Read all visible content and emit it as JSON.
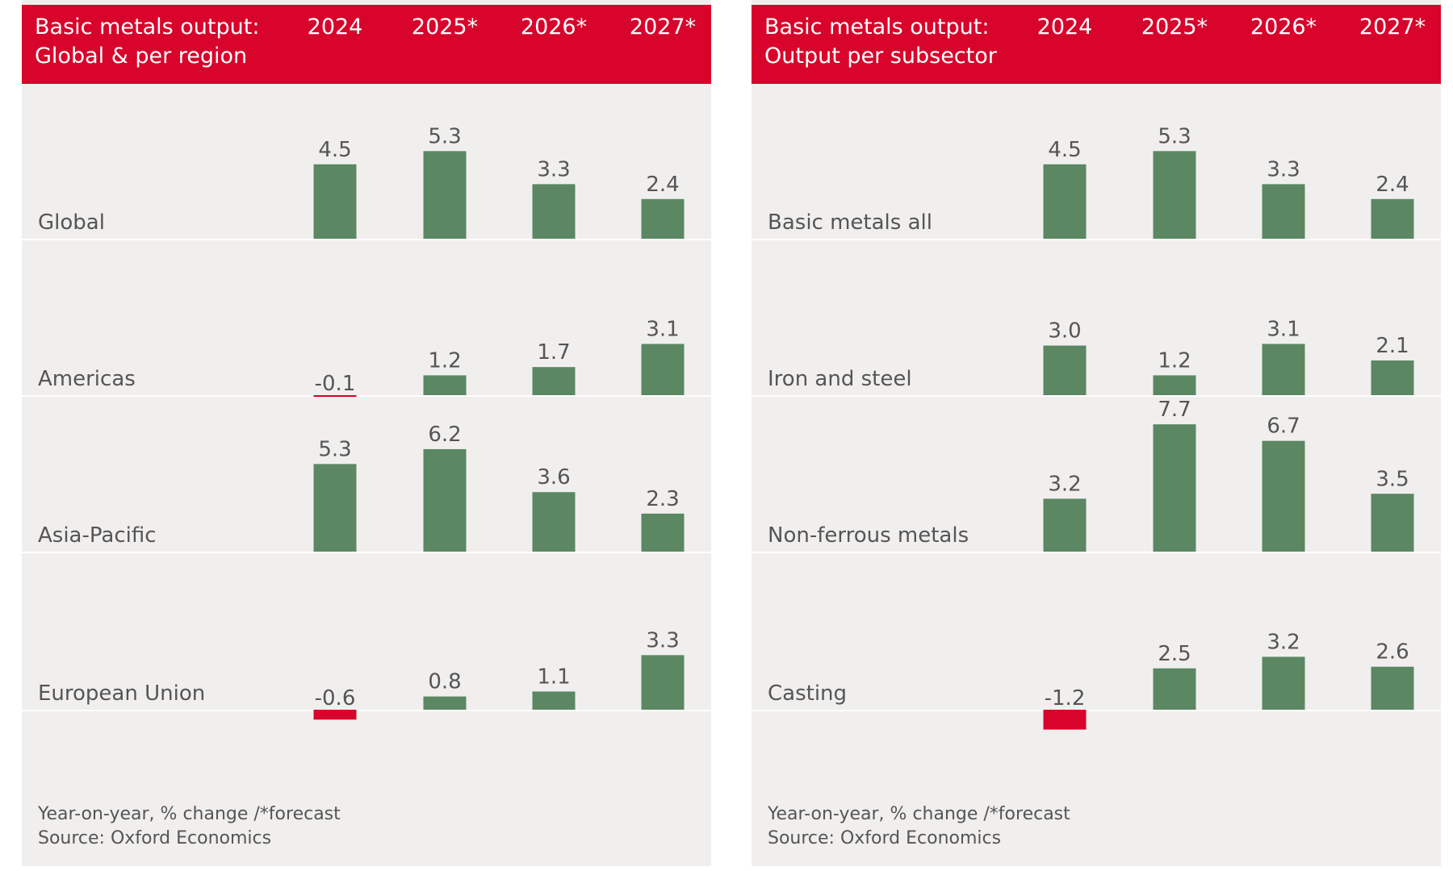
{
  "chart_data": [
    {
      "type": "bar",
      "title": "Basic metals output:",
      "subtitle": "Global & per region",
      "columns": [
        "2024",
        "2025*",
        "2026*",
        "2027*"
      ],
      "positive_color": "#5b8763",
      "negative_color": "#d8042b",
      "rows": [
        {
          "name": "Global",
          "values": [
            4.5,
            5.3,
            3.3,
            2.4
          ]
        },
        {
          "name": "Americas",
          "values": [
            -0.1,
            1.2,
            1.7,
            3.1
          ]
        },
        {
          "name": "Asia-Pacific",
          "values": [
            5.3,
            6.2,
            3.6,
            2.3
          ]
        },
        {
          "name": "European Union",
          "values": [
            -0.6,
            0.8,
            1.1,
            3.3
          ]
        }
      ],
      "note": "Year-on-year, % change /*forecast",
      "source": "Source: Oxford Economics"
    },
    {
      "type": "bar",
      "title": "Basic metals output:",
      "subtitle": "Output per subsector",
      "columns": [
        "2024",
        "2025*",
        "2026*",
        "2027*"
      ],
      "positive_color": "#5b8763",
      "negative_color": "#d8042b",
      "rows": [
        {
          "name": "Basic metals all",
          "values": [
            4.5,
            5.3,
            3.3,
            2.4
          ]
        },
        {
          "name": "Iron and steel",
          "values": [
            3.0,
            1.2,
            3.1,
            2.1
          ],
          "value_labels": [
            "3.0",
            "1.2",
            "3.1",
            "2.1"
          ]
        },
        {
          "name": "Non-ferrous metals",
          "values": [
            3.2,
            7.7,
            6.7,
            3.5
          ]
        },
        {
          "name": "Casting",
          "values": [
            -1.2,
            2.5,
            3.2,
            2.6
          ]
        }
      ],
      "note": "Year-on-year, % change /*forecast",
      "source": "Source: Oxford Economics"
    }
  ]
}
